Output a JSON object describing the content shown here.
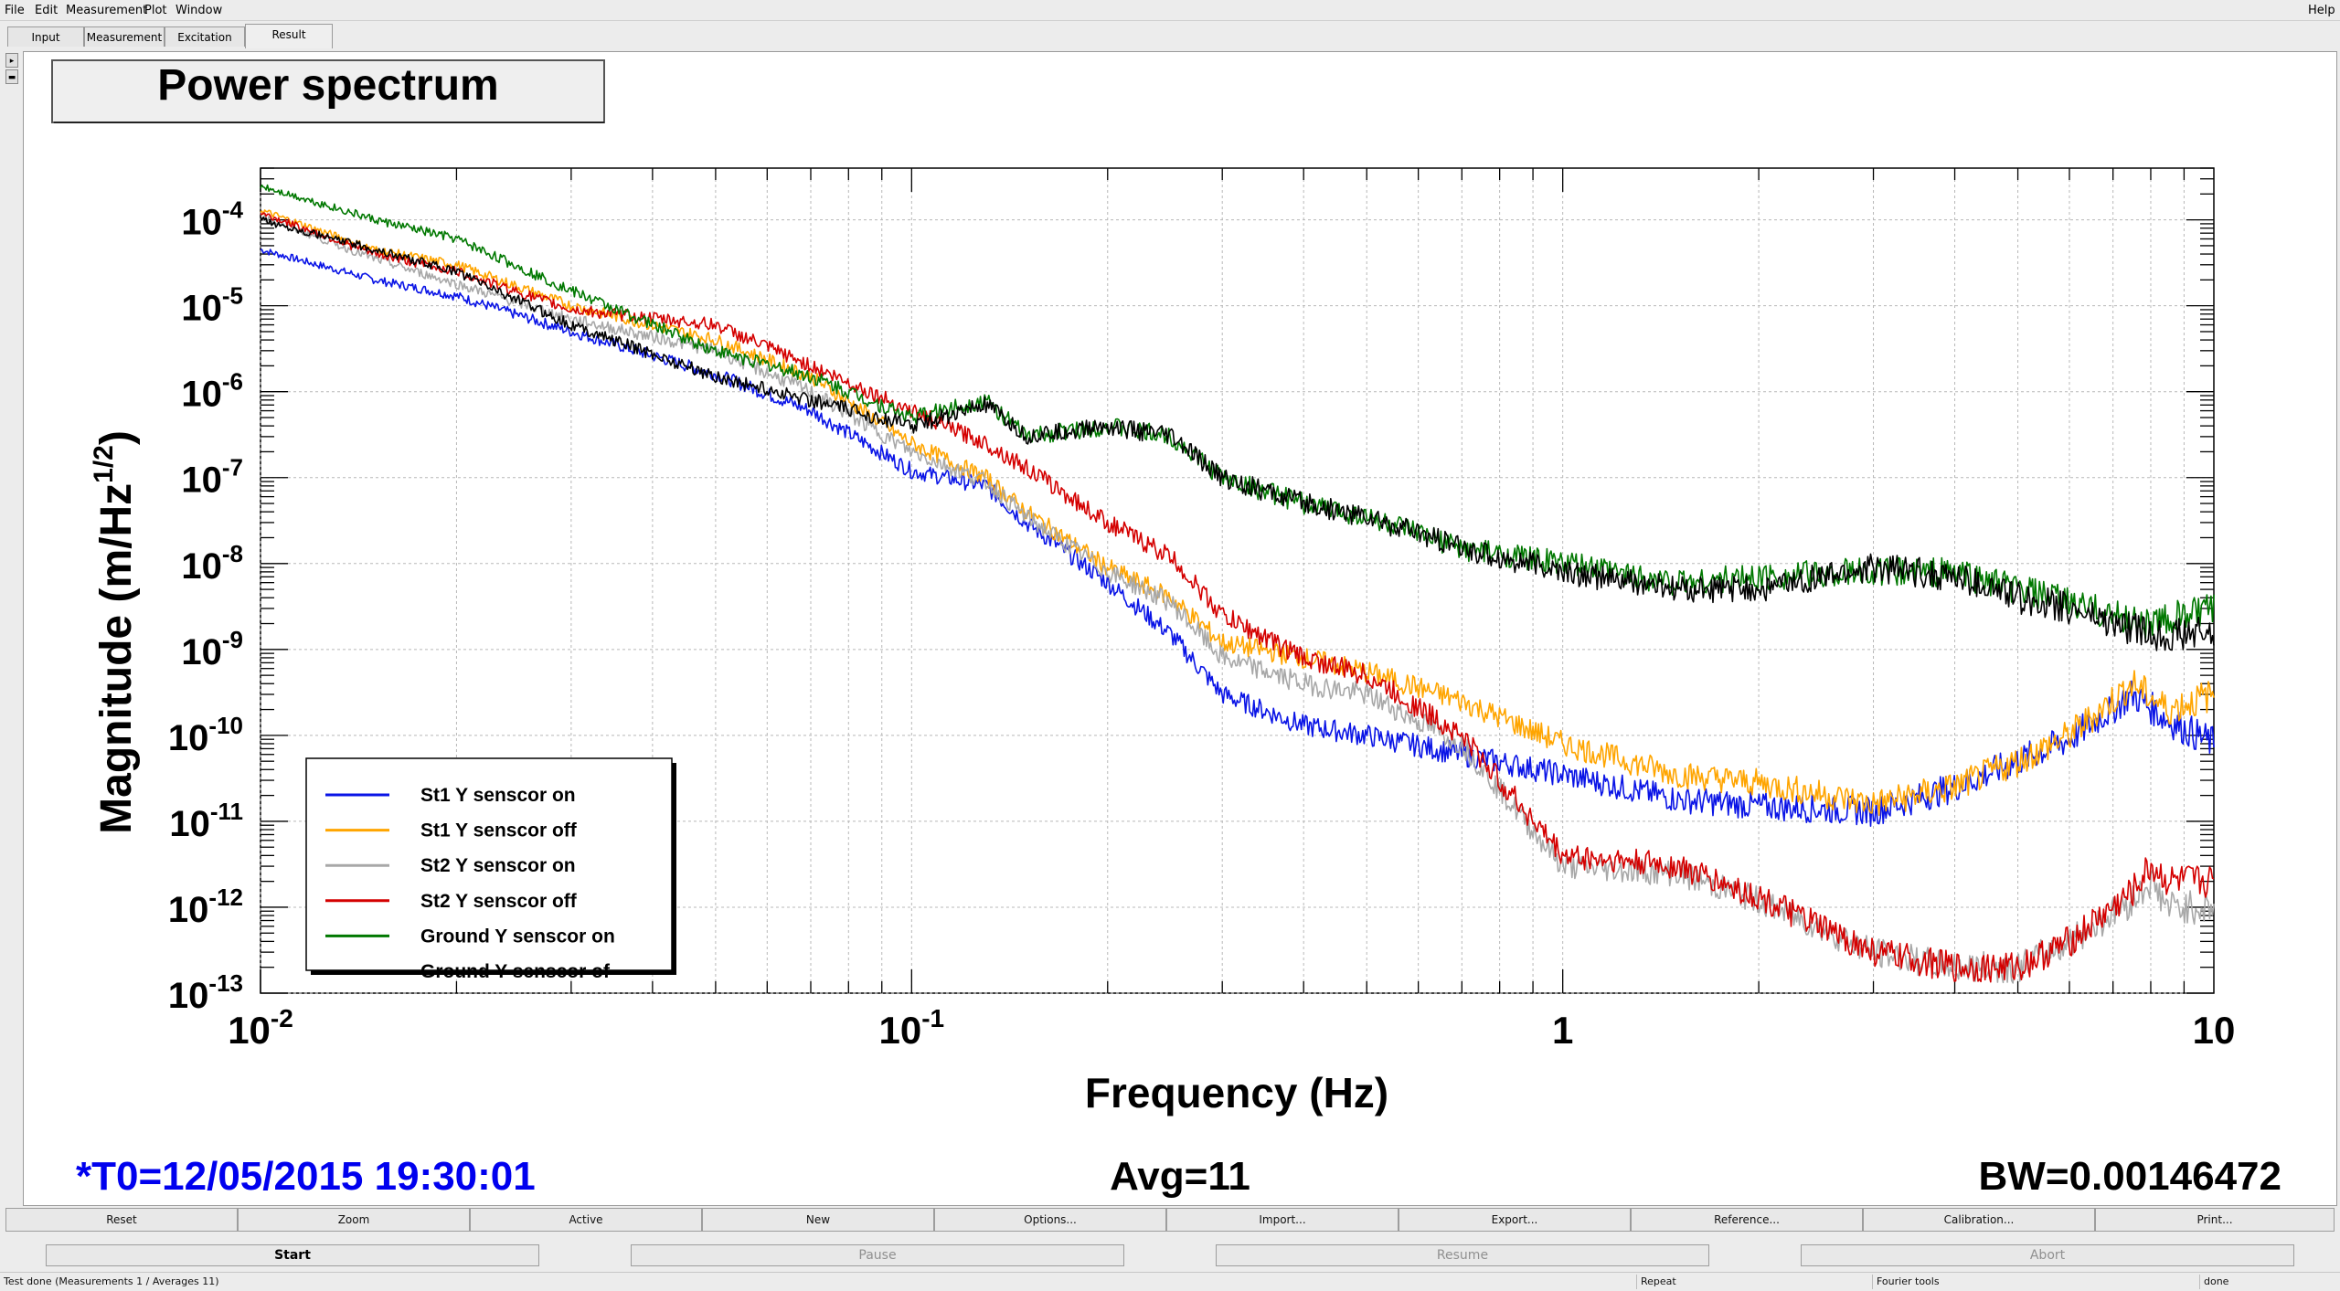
{
  "menu": {
    "file": "File",
    "edit": "Edit",
    "measurement": "Measurement",
    "plot": "Plot",
    "window": "Window",
    "help": "Help"
  },
  "tabs": [
    "Input",
    "Measurement",
    "Excitation",
    "Result"
  ],
  "active_tab": "Result",
  "footer": {
    "t0": "*T0=12/05/2015 19:30:01",
    "avg": "Avg=11",
    "bw": "BW=0.00146472"
  },
  "buttons_row1": [
    "Reset",
    "Zoom",
    "Active",
    "New",
    "Options...",
    "Import...",
    "Export...",
    "Reference...",
    "Calibration...",
    "Print..."
  ],
  "buttons_row2": [
    "Start",
    "Pause",
    "Resume",
    "Abort"
  ],
  "status": {
    "message": "Test done (Measurements 1 / Averages 11)",
    "repeat": "Repeat",
    "tools": "Fourier tools",
    "state": "done"
  },
  "colors": {
    "st1_on": "#0a14e6",
    "st1_off": "#ffa500",
    "st2_on": "#a8a8a8",
    "st2_off": "#d40000",
    "ground_on": "#007800",
    "ground_off": "#000000",
    "footer_blue": "#0000ee"
  },
  "chart_data": {
    "type": "line",
    "title": "Power spectrum",
    "xlabel": "Frequency (Hz)",
    "ylabel": "Magnitude (m/Hz^(1/2))",
    "xscale": "log",
    "yscale": "log",
    "xlim": [
      0.01,
      10
    ],
    "ylim": [
      1e-13,
      0.0004
    ],
    "grid": true,
    "legend_position": "bottom-left",
    "x_ticks": [
      {
        "value": 0.01,
        "base": "10",
        "exp": "-2"
      },
      {
        "value": 0.1,
        "base": "10",
        "exp": "-1"
      },
      {
        "value": 1,
        "base": "1",
        "exp": ""
      },
      {
        "value": 10,
        "base": "10",
        "exp": ""
      }
    ],
    "y_ticks": [
      -4,
      -5,
      -6,
      -7,
      -8,
      -9,
      -10,
      -11,
      -12,
      -13
    ],
    "series": [
      {
        "name": "St1 Y senscor on",
        "color": "#0a14e6",
        "points": [
          [
            0.01,
            4.5e-05
          ],
          [
            0.015,
            2e-05
          ],
          [
            0.02,
            1.3e-05
          ],
          [
            0.03,
            5e-06
          ],
          [
            0.05,
            1.6e-06
          ],
          [
            0.07,
            6e-07
          ],
          [
            0.1,
            1.2e-07
          ],
          [
            0.13,
            8e-08
          ],
          [
            0.15,
            3e-08
          ],
          [
            0.2,
            6e-09
          ],
          [
            0.25,
            1.5e-09
          ],
          [
            0.3,
            3e-10
          ],
          [
            0.4,
            1.3e-10
          ],
          [
            0.5,
            1e-10
          ],
          [
            0.7,
            6e-11
          ],
          [
            1,
            3.5e-11
          ],
          [
            1.5,
            1.8e-11
          ],
          [
            2,
            1.5e-11
          ],
          [
            3,
            1.3e-11
          ],
          [
            4,
            2.5e-11
          ],
          [
            5,
            5e-11
          ],
          [
            6,
            9e-11
          ],
          [
            7.5,
            3e-10
          ],
          [
            8.5,
            1.5e-10
          ],
          [
            10,
            8e-11
          ]
        ]
      },
      {
        "name": "St1 Y senscor off",
        "color": "#ffa500",
        "points": [
          [
            0.01,
            0.00013
          ],
          [
            0.015,
            4.5e-05
          ],
          [
            0.02,
            3e-05
          ],
          [
            0.03,
            1e-05
          ],
          [
            0.05,
            4e-06
          ],
          [
            0.07,
            1.5e-06
          ],
          [
            0.1,
            2.5e-07
          ],
          [
            0.13,
            1e-07
          ],
          [
            0.15,
            4e-08
          ],
          [
            0.2,
            9e-09
          ],
          [
            0.25,
            4e-09
          ],
          [
            0.3,
            1.2e-09
          ],
          [
            0.4,
            8e-10
          ],
          [
            0.5,
            5.5e-10
          ],
          [
            0.7,
            2.5e-10
          ],
          [
            1,
            8e-11
          ],
          [
            1.5,
            3.5e-11
          ],
          [
            2,
            2.8e-11
          ],
          [
            3,
            1.6e-11
          ],
          [
            4,
            2.5e-11
          ],
          [
            5,
            5e-11
          ],
          [
            6,
            1e-10
          ],
          [
            7.5,
            4e-10
          ],
          [
            8.5,
            2e-10
          ],
          [
            10,
            3e-10
          ]
        ]
      },
      {
        "name": "St2 Y senscor on",
        "color": "#a8a8a8",
        "points": [
          [
            0.01,
            0.00011
          ],
          [
            0.015,
            3.5e-05
          ],
          [
            0.02,
            1.8e-05
          ],
          [
            0.03,
            7e-06
          ],
          [
            0.05,
            3e-06
          ],
          [
            0.07,
            1e-06
          ],
          [
            0.1,
            2e-07
          ],
          [
            0.13,
            9e-08
          ],
          [
            0.15,
            3.5e-08
          ],
          [
            0.2,
            8e-09
          ],
          [
            0.25,
            3.5e-09
          ],
          [
            0.3,
            8e-10
          ],
          [
            0.4,
            4e-10
          ],
          [
            0.5,
            3e-10
          ],
          [
            0.7,
            8e-11
          ],
          [
            1,
            3e-12
          ],
          [
            1.5,
            2.5e-12
          ],
          [
            2,
            1.2e-12
          ],
          [
            3,
            3e-13
          ],
          [
            4,
            2e-13
          ],
          [
            5,
            2e-13
          ],
          [
            6,
            4e-13
          ],
          [
            7.5,
            1.2e-12
          ],
          [
            8,
            2e-12
          ],
          [
            8.5,
            1e-12
          ],
          [
            10,
            1e-12
          ]
        ]
      },
      {
        "name": "St2 Y senscor off",
        "color": "#d40000",
        "points": [
          [
            0.01,
            0.00012
          ],
          [
            0.015,
            4e-05
          ],
          [
            0.02,
            2.5e-05
          ],
          [
            0.03,
            9e-06
          ],
          [
            0.05,
            6e-06
          ],
          [
            0.07,
            2e-06
          ],
          [
            0.1,
            6e-07
          ],
          [
            0.13,
            2.5e-07
          ],
          [
            0.15,
            1.3e-07
          ],
          [
            0.2,
            3e-08
          ],
          [
            0.25,
            1.2e-08
          ],
          [
            0.3,
            2.5e-09
          ],
          [
            0.4,
            8e-10
          ],
          [
            0.5,
            5e-10
          ],
          [
            0.7,
            1e-10
          ],
          [
            1,
            4e-12
          ],
          [
            1.5,
            3e-12
          ],
          [
            2,
            1.3e-12
          ],
          [
            3,
            3e-13
          ],
          [
            4,
            2e-13
          ],
          [
            5,
            2e-13
          ],
          [
            6,
            4e-13
          ],
          [
            7.5,
            1.5e-12
          ],
          [
            8,
            3e-12
          ],
          [
            8.5,
            2e-12
          ],
          [
            10,
            2e-12
          ]
        ]
      },
      {
        "name": "Ground Y senscor on",
        "color": "#007800",
        "points": [
          [
            0.01,
            0.00025
          ],
          [
            0.015,
            0.0001
          ],
          [
            0.02,
            6e-05
          ],
          [
            0.03,
            1.5e-05
          ],
          [
            0.05,
            3e-06
          ],
          [
            0.07,
            1.5e-06
          ],
          [
            0.1,
            5e-07
          ],
          [
            0.13,
            8e-07
          ],
          [
            0.15,
            3e-07
          ],
          [
            0.2,
            4e-07
          ],
          [
            0.25,
            3e-07
          ],
          [
            0.3,
            1e-07
          ],
          [
            0.4,
            5e-08
          ],
          [
            0.5,
            3.5e-08
          ],
          [
            0.7,
            1.5e-08
          ],
          [
            1,
            1e-08
          ],
          [
            1.5,
            6e-09
          ],
          [
            2,
            7e-09
          ],
          [
            3,
            8e-09
          ],
          [
            4,
            8e-09
          ],
          [
            5,
            5e-09
          ],
          [
            6,
            3.5e-09
          ],
          [
            7,
            2.5e-09
          ],
          [
            8,
            2e-09
          ],
          [
            10,
            3e-09
          ]
        ]
      },
      {
        "name": "Ground Y senscor of",
        "color": "#000000",
        "points": [
          [
            0.01,
            0.0001
          ],
          [
            0.015,
            4.5e-05
          ],
          [
            0.02,
            2.5e-05
          ],
          [
            0.03,
            6e-06
          ],
          [
            0.05,
            1.5e-06
          ],
          [
            0.07,
            8e-07
          ],
          [
            0.1,
            4e-07
          ],
          [
            0.13,
            7e-07
          ],
          [
            0.15,
            3e-07
          ],
          [
            0.2,
            4e-07
          ],
          [
            0.25,
            3e-07
          ],
          [
            0.3,
            1e-07
          ],
          [
            0.4,
            5e-08
          ],
          [
            0.5,
            3.5e-08
          ],
          [
            0.7,
            1.5e-08
          ],
          [
            1,
            8e-09
          ],
          [
            1.5,
            5e-09
          ],
          [
            2,
            5e-09
          ],
          [
            3,
            9e-09
          ],
          [
            4,
            7e-09
          ],
          [
            5,
            4e-09
          ],
          [
            6,
            3e-09
          ],
          [
            7,
            2e-09
          ],
          [
            8,
            1.5e-09
          ],
          [
            10,
            1.5e-09
          ]
        ]
      }
    ]
  }
}
